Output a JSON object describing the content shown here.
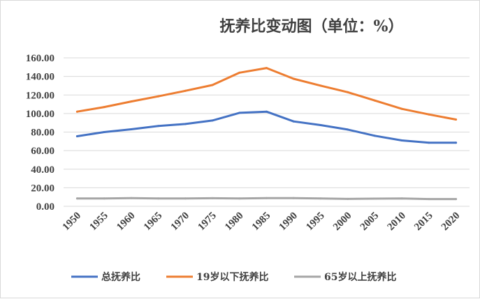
{
  "chart_data": {
    "type": "line",
    "title": "抚养比变动图（单位：%）",
    "xlabel": "",
    "ylabel": "",
    "x": [
      "1950",
      "1955",
      "1960",
      "1965",
      "1970",
      "1975",
      "1980",
      "1985",
      "1990",
      "1995",
      "2000",
      "2005",
      "2010",
      "2015",
      "2020"
    ],
    "yticks": [
      "0.00",
      "20.00",
      "40.00",
      "60.00",
      "80.00",
      "100.00",
      "120.00",
      "140.00",
      "160.00"
    ],
    "ylim": [
      0,
      160
    ],
    "grid": true,
    "legend_position": "bottom",
    "series": [
      {
        "name": "总抚养比",
        "color": "#4472C4",
        "values": [
          75.5,
          80.0,
          83.0,
          86.5,
          88.7,
          92.5,
          100.7,
          102.0,
          91.5,
          87.5,
          82.7,
          76.0,
          71.0,
          68.5,
          68.5
        ]
      },
      {
        "name": "19岁以下抚养比",
        "color": "#ED7D31",
        "values": [
          102.0,
          107.0,
          113.0,
          118.5,
          124.5,
          130.7,
          144.0,
          149.0,
          137.5,
          130.0,
          123.0,
          114.0,
          105.0,
          99.0,
          93.5
        ]
      },
      {
        "name": "65岁以上抚养比",
        "color": "#A5A5A5",
        "values": [
          8.5,
          8.5,
          8.8,
          8.5,
          8.5,
          8.7,
          8.5,
          8.8,
          8.8,
          8.5,
          8.0,
          8.3,
          8.5,
          7.8,
          7.8
        ]
      }
    ]
  }
}
